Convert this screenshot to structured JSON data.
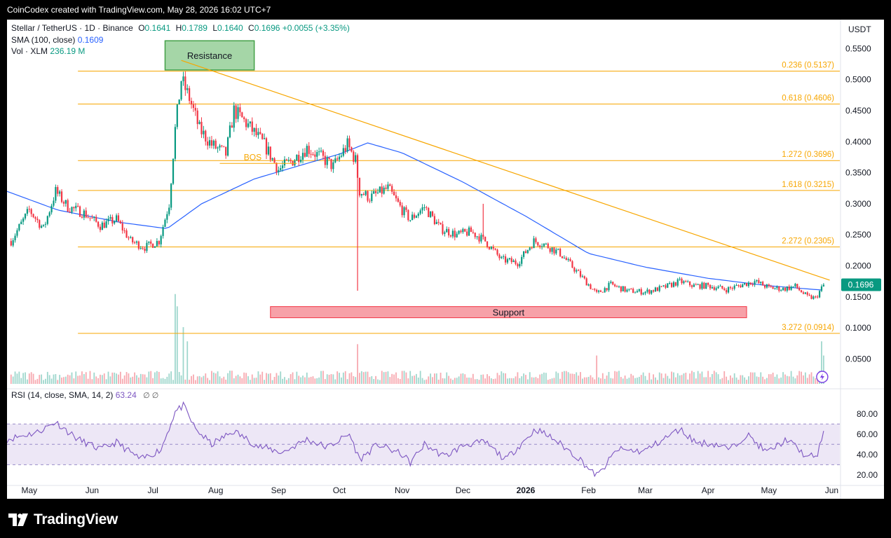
{
  "header": {
    "text": "CoinCodex created with TradingView.com, May 28, 2026 16:02 UTC+7"
  },
  "brand": {
    "name": "TradingView"
  },
  "legend": {
    "symbol": "Stellar / TetherUS · 1D · Binance",
    "o_label": "O",
    "o_value": "0.1641",
    "h_label": "H",
    "h_value": "0.1789",
    "l_label": "L",
    "l_value": "0.1640",
    "c_label": "C",
    "c_value": "0.1696",
    "change": "+0.0055 (+3.35%)",
    "sma_label": "SMA (100, close)",
    "sma_value": "0.1609",
    "vol_label": "Vol · XLM",
    "vol_value": "236.19 M"
  },
  "rsi_legend": {
    "label": "RSI (14, close, SMA, 14, 2)",
    "value": "63.24",
    "icons": "∅ ∅"
  },
  "colors": {
    "up": "#089981",
    "down": "#f23645",
    "sma": "#2962ff",
    "fib": "#f7a600",
    "rsi": "#7e57c2",
    "rsi_band": "#ede7f6",
    "support": "#f7a1a8",
    "resistance": "#a5d6a7"
  },
  "chart_data": [
    {
      "type": "candlestick",
      "currency": "USDT",
      "y_range": [
        0.01,
        0.565
      ],
      "y_ticks": [
        "0.5500",
        "0.5000",
        "0.4500",
        "0.4000",
        "0.3500",
        "0.3000",
        "0.2500",
        "0.2000",
        "0.1500",
        "0.1000",
        "0.0500"
      ],
      "x_range": [
        "2025-04-20",
        "2026-06-05"
      ],
      "x_ticks": [
        {
          "date": "2025-05-01",
          "label": "May"
        },
        {
          "date": "2025-06-01",
          "label": "Jun"
        },
        {
          "date": "2025-07-01",
          "label": "Jul"
        },
        {
          "date": "2025-08-01",
          "label": "Aug"
        },
        {
          "date": "2025-09-01",
          "label": "Sep"
        },
        {
          "date": "2025-10-01",
          "label": "Oct"
        },
        {
          "date": "2025-11-01",
          "label": "Nov"
        },
        {
          "date": "2025-12-01",
          "label": "Dec"
        },
        {
          "date": "2026-01-01",
          "label": "2026"
        },
        {
          "date": "2026-02-01",
          "label": "Feb"
        },
        {
          "date": "2026-03-01",
          "label": "Mar"
        },
        {
          "date": "2026-04-01",
          "label": "Apr"
        },
        {
          "date": "2026-05-01",
          "label": "May"
        },
        {
          "date": "2026-06-01",
          "label": "Jun"
        }
      ],
      "price_path": [
        [
          "2025-04-22",
          0.24
        ],
        [
          "2025-05-01",
          0.29
        ],
        [
          "2025-05-08",
          0.26
        ],
        [
          "2025-05-14",
          0.32
        ],
        [
          "2025-05-20",
          0.295
        ],
        [
          "2025-05-28",
          0.285
        ],
        [
          "2025-06-05",
          0.265
        ],
        [
          "2025-06-13",
          0.275
        ],
        [
          "2025-06-20",
          0.24
        ],
        [
          "2025-06-27",
          0.23
        ],
        [
          "2025-07-04",
          0.24
        ],
        [
          "2025-07-09",
          0.3
        ],
        [
          "2025-07-12",
          0.42
        ],
        [
          "2025-07-15",
          0.5
        ],
        [
          "2025-07-19",
          0.47
        ],
        [
          "2025-07-24",
          0.42
        ],
        [
          "2025-07-30",
          0.395
        ],
        [
          "2025-08-06",
          0.38
        ],
        [
          "2025-08-10",
          0.45
        ],
        [
          "2025-08-16",
          0.43
        ],
        [
          "2025-08-25",
          0.395
        ],
        [
          "2025-09-01",
          0.355
        ],
        [
          "2025-09-08",
          0.37
        ],
        [
          "2025-09-15",
          0.39
        ],
        [
          "2025-09-22",
          0.375
        ],
        [
          "2025-09-28",
          0.36
        ],
        [
          "2025-10-05",
          0.395
        ],
        [
          "2025-10-09",
          0.37
        ],
        [
          "2025-10-11",
          0.32
        ],
        [
          "2025-10-16",
          0.31
        ],
        [
          "2025-10-25",
          0.325
        ],
        [
          "2025-11-01",
          0.29
        ],
        [
          "2025-11-05",
          0.275
        ],
        [
          "2025-11-12",
          0.295
        ],
        [
          "2025-11-20",
          0.26
        ],
        [
          "2025-11-28",
          0.25
        ],
        [
          "2025-12-05",
          0.255
        ],
        [
          "2025-12-12",
          0.24
        ],
        [
          "2025-12-20",
          0.21
        ],
        [
          "2025-12-28",
          0.205
        ],
        [
          "2026-01-05",
          0.24
        ],
        [
          "2026-01-10",
          0.235
        ],
        [
          "2026-01-18",
          0.22
        ],
        [
          "2026-01-25",
          0.195
        ],
        [
          "2026-02-01",
          0.17
        ],
        [
          "2026-02-05",
          0.155
        ],
        [
          "2026-02-12",
          0.17
        ],
        [
          "2026-02-20",
          0.16
        ],
        [
          "2026-03-01",
          0.158
        ],
        [
          "2026-03-10",
          0.165
        ],
        [
          "2026-03-18",
          0.175
        ],
        [
          "2026-03-25",
          0.168
        ],
        [
          "2026-04-01",
          0.168
        ],
        [
          "2026-04-10",
          0.162
        ],
        [
          "2026-04-18",
          0.17
        ],
        [
          "2026-04-24",
          0.175
        ],
        [
          "2026-05-01",
          0.165
        ],
        [
          "2026-05-08",
          0.163
        ],
        [
          "2026-05-14",
          0.167
        ],
        [
          "2026-05-20",
          0.15
        ],
        [
          "2026-05-24",
          0.148
        ],
        [
          "2026-05-27",
          0.164
        ],
        [
          "2026-05-28",
          0.1696
        ]
      ],
      "sma_series": [
        [
          "2025-04-20",
          0.32
        ],
        [
          "2025-05-15",
          0.29
        ],
        [
          "2025-06-15",
          0.27
        ],
        [
          "2025-07-08",
          0.26
        ],
        [
          "2025-07-25",
          0.3
        ],
        [
          "2025-08-20",
          0.34
        ],
        [
          "2025-09-15",
          0.365
        ],
        [
          "2025-10-01",
          0.38
        ],
        [
          "2025-10-15",
          0.398
        ],
        [
          "2025-11-01",
          0.382
        ],
        [
          "2025-12-01",
          0.335
        ],
        [
          "2026-01-01",
          0.28
        ],
        [
          "2026-02-01",
          0.22
        ],
        [
          "2026-03-01",
          0.198
        ],
        [
          "2026-04-01",
          0.18
        ],
        [
          "2026-05-01",
          0.168
        ],
        [
          "2026-05-28",
          0.1609
        ]
      ],
      "outlier_wicks": [
        {
          "date": "2025-10-10",
          "low": 0.16
        },
        {
          "date": "2025-12-11",
          "high": 0.3
        }
      ],
      "fib_levels": [
        {
          "label": "0.236 (0.5137)",
          "value": 0.5137
        },
        {
          "label": "0.618 (0.4606)",
          "value": 0.4606
        },
        {
          "label": "1.272 (0.3696)",
          "value": 0.3696
        },
        {
          "label": "1.618 (0.3215)",
          "value": 0.3215
        },
        {
          "label": "2.272 (0.2305)",
          "value": 0.2305
        },
        {
          "label": "3.272 (0.0914)",
          "value": 0.0914
        }
      ],
      "fib_start": "2025-05-25",
      "trendline": {
        "from": [
          "2025-07-15",
          0.531
        ],
        "to": [
          "2026-05-31",
          0.177
        ]
      },
      "bos": {
        "label": "BOS",
        "value": 0.365,
        "from": "2025-08-03",
        "to": "2025-09-10"
      },
      "resistance_box": {
        "label": "Resistance",
        "from": "2025-07-07",
        "to": "2025-08-20",
        "top": 0.5625,
        "bottom": 0.5155
      },
      "support_box": {
        "label": "Support",
        "from": "2025-08-28",
        "to": "2026-04-20",
        "top": 0.1345,
        "bottom": 0.1165
      },
      "last_price": {
        "label": "0.1696",
        "value": 0.1696
      },
      "volume_spikes": [
        {
          "date": "2025-07-12",
          "frac": 0.95
        },
        {
          "date": "2025-07-13",
          "frac": 0.82
        },
        {
          "date": "2025-07-16",
          "frac": 0.6
        },
        {
          "date": "2025-07-18",
          "frac": 0.45
        },
        {
          "date": "2025-10-10",
          "frac": 0.42
        },
        {
          "date": "2026-02-05",
          "frac": 0.3
        },
        {
          "date": "2026-05-27",
          "frac": 0.45
        },
        {
          "date": "2026-05-28",
          "frac": 0.3
        }
      ]
    },
    {
      "type": "line",
      "name": "RSI (14, close, SMA, 14, 2)",
      "y_range": [
        13,
        95
      ],
      "y_ticks": [
        "80.00",
        "60.00",
        "40.00",
        "20.00"
      ],
      "band": [
        30,
        70
      ],
      "midline": 50,
      "series_path": [
        [
          "2025-04-20",
          55
        ],
        [
          "2025-05-05",
          62
        ],
        [
          "2025-05-14",
          72
        ],
        [
          "2025-05-25",
          55
        ],
        [
          "2025-06-05",
          45
        ],
        [
          "2025-06-13",
          52
        ],
        [
          "2025-06-25",
          35
        ],
        [
          "2025-07-05",
          45
        ],
        [
          "2025-07-12",
          82
        ],
        [
          "2025-07-16",
          88
        ],
        [
          "2025-07-22",
          65
        ],
        [
          "2025-07-30",
          50
        ],
        [
          "2025-08-10",
          63
        ],
        [
          "2025-08-22",
          48
        ],
        [
          "2025-09-03",
          42
        ],
        [
          "2025-09-15",
          55
        ],
        [
          "2025-09-25",
          47
        ],
        [
          "2025-10-06",
          60
        ],
        [
          "2025-10-11",
          35
        ],
        [
          "2025-10-20",
          50
        ],
        [
          "2025-11-01",
          40
        ],
        [
          "2025-11-05",
          32
        ],
        [
          "2025-11-12",
          50
        ],
        [
          "2025-11-22",
          38
        ],
        [
          "2025-12-02",
          50
        ],
        [
          "2025-12-12",
          52
        ],
        [
          "2025-12-22",
          35
        ],
        [
          "2026-01-06",
          65
        ],
        [
          "2026-01-15",
          55
        ],
        [
          "2026-01-28",
          35
        ],
        [
          "2026-02-03",
          22
        ],
        [
          "2026-02-06",
          20
        ],
        [
          "2026-02-15",
          45
        ],
        [
          "2026-02-28",
          43
        ],
        [
          "2026-03-10",
          55
        ],
        [
          "2026-03-18",
          65
        ],
        [
          "2026-03-26",
          52
        ],
        [
          "2026-04-05",
          50
        ],
        [
          "2026-04-12",
          45
        ],
        [
          "2026-04-20",
          60
        ],
        [
          "2026-04-30",
          42
        ],
        [
          "2026-05-10",
          55
        ],
        [
          "2026-05-20",
          37
        ],
        [
          "2026-05-25",
          40
        ],
        [
          "2026-05-28",
          63.24
        ]
      ]
    }
  ]
}
